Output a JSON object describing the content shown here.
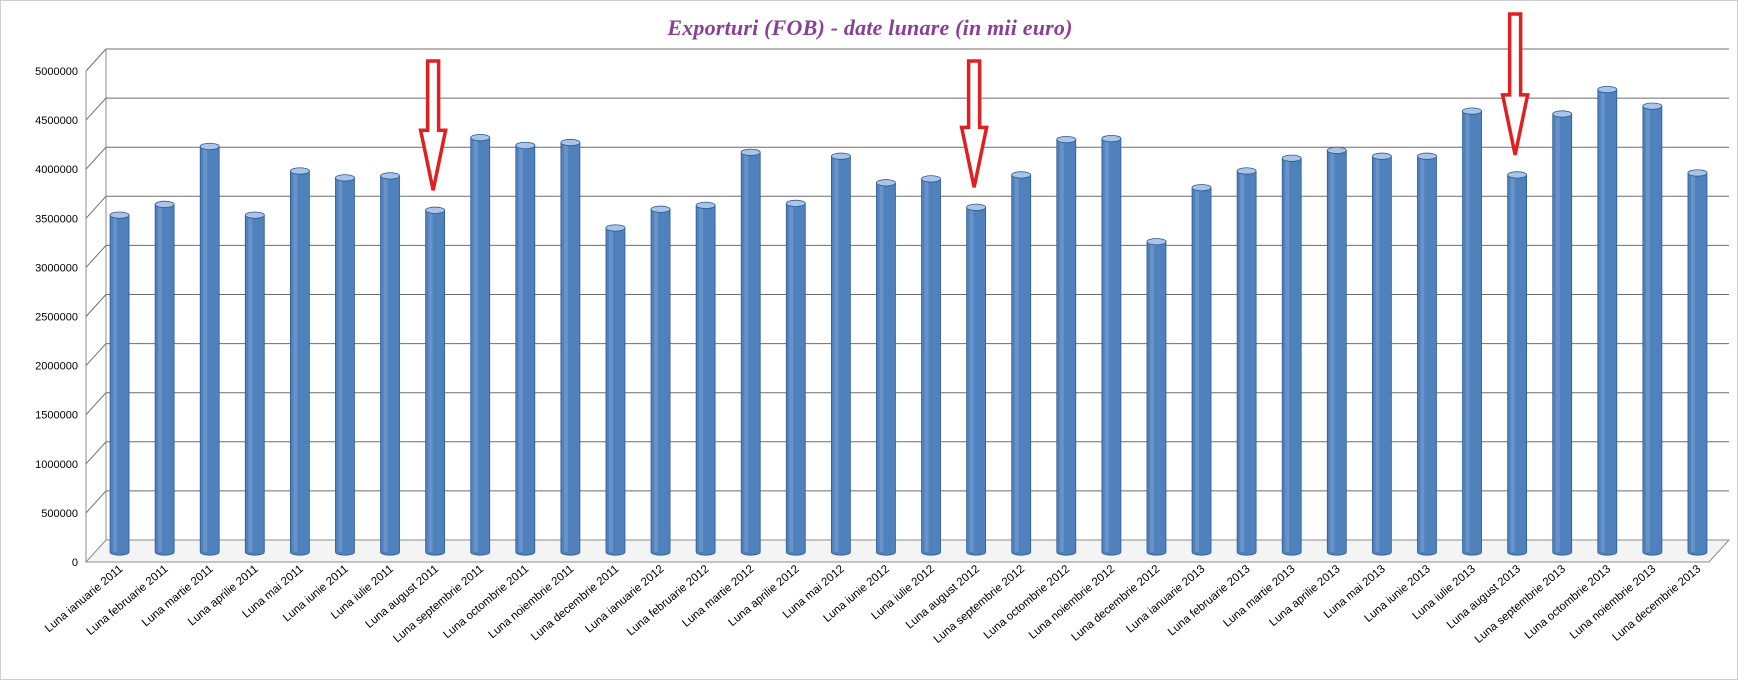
{
  "chart_data": {
    "type": "bar",
    "title": "Exporturi (FOB)   - date lunare (in mii euro)",
    "xlabel": "",
    "ylabel": "",
    "ylim": [
      0,
      5000000
    ],
    "yticks": [
      "0",
      "500000",
      "1000000",
      "1500000",
      "2000000",
      "2500000",
      "3000000",
      "3500000",
      "4000000",
      "4500000",
      "5000000"
    ],
    "grid": true,
    "bar_color": "#4f81bd",
    "annotation_color": "#e02020",
    "categories": [
      "Luna ianuarie 2011",
      "Luna februarie 2011",
      "Luna martie 2011",
      "Luna aprilie 2011",
      "Luna mai 2011",
      "Luna iunie 2011",
      "Luna iulie 2011",
      "Luna august 2011",
      "Luna septembrie 2011",
      "Luna octombrie 2011",
      "Luna noiembrie 2011",
      "Luna decembrie 2011",
      "Luna ianuarie 2012",
      "Luna februarie 2012",
      "Luna martie 2012",
      "Luna aprilie 2012",
      "Luna mai 2012",
      "Luna iunie 2012",
      "Luna iulie 2012",
      "Luna august 2012",
      "Luna septembrie 2012",
      "Luna octombrie 2012",
      "Luna noiembrie 2012",
      "Luna decembrie 2012",
      "Luna ianuarie 2013",
      "Luna februarie 2013",
      "Luna martie 2013",
      "Luna aprilie 2013",
      "Luna mai 2013",
      "Luna iunie 2013",
      "Luna iulie 2013",
      "Luna august 2013",
      "Luna septembrie 2013",
      "Luna octombrie 2013",
      "Luna noiembrie 2013",
      "Luna decembrie 2013"
    ],
    "values": [
      3430000,
      3540000,
      4130000,
      3430000,
      3880000,
      3810000,
      3830000,
      3480000,
      4220000,
      4140000,
      4170000,
      3300000,
      3490000,
      3530000,
      4070000,
      3550000,
      4030000,
      3760000,
      3800000,
      3510000,
      3840000,
      4200000,
      4210000,
      3160000,
      3710000,
      3880000,
      4010000,
      4090000,
      4030000,
      4030000,
      4490000,
      3840000,
      4460000,
      4710000,
      4540000,
      3860000
    ],
    "annotations": [
      {
        "type": "down-arrow",
        "category": "Luna august 2011"
      },
      {
        "type": "down-arrow",
        "category": "Luna august 2012"
      },
      {
        "type": "down-arrow",
        "category": "Luna august 2013"
      }
    ]
  }
}
